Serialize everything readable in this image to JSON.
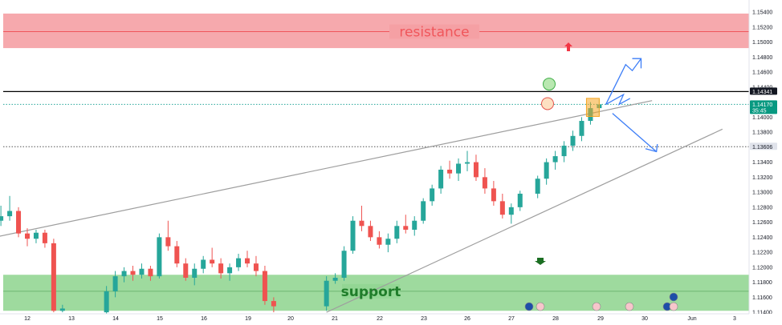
{
  "chart_data": {
    "type": "candlestick",
    "ylim": [
      1.1138,
      1.1555
    ],
    "y_ticks": [
      "1.15400",
      "1.15200",
      "1.15000",
      "1.14800",
      "1.14600",
      "1.14400",
      "1.14000",
      "1.13800",
      "1.13400",
      "1.13200",
      "1.13000",
      "1.12800",
      "1.12600",
      "1.12400",
      "1.12200",
      "1.12000",
      "1.11800",
      "1.11600",
      "1.11400"
    ],
    "x_ticks": [
      "12",
      "13",
      "14",
      "15",
      "16",
      "19",
      "20",
      "21",
      "22",
      "23",
      "26",
      "27",
      "28",
      "29",
      "30",
      "Jun",
      "3"
    ],
    "resistance_zone": {
      "label": "resistance",
      "low": 1.1492,
      "high": 1.1538,
      "mid": 1.1514,
      "color": "#f5a0a4",
      "text_color": "#f0565b"
    },
    "support_zone": {
      "label": "support",
      "low": 1.1142,
      "high": 1.119,
      "mid": 1.1168,
      "color": "#93d694",
      "text_color": "#1f7d2a"
    },
    "levels": [
      {
        "value": 1.14341,
        "label": "1.14341",
        "style": "solid",
        "color": "#000000",
        "tag_bg": "#131722",
        "tag_fg": "#ffffff"
      },
      {
        "value": 1.1417,
        "label": "1.14170",
        "sub": "35:45",
        "style": "dotted",
        "color": "#26a69a",
        "tag_bg": "#089981",
        "tag_fg": "#ffffff"
      },
      {
        "value": 1.13606,
        "label": "1.13606",
        "style": "dotted",
        "color": "#555555",
        "tag_bg": "#e0e3eb",
        "tag_fg": "#131722"
      }
    ],
    "channel": {
      "upper": [
        [
          10.6,
          1.1232
        ],
        [
          26.2,
          1.1422
        ]
      ],
      "lower": [
        [
          18.8,
          1.114
        ],
        [
          27.8,
          1.1384
        ]
      ]
    },
    "candles": [
      [
        11.0,
        1.1252,
        1.126,
        1.124,
        1.1248
      ],
      [
        11.2,
        1.1248,
        1.1268,
        1.1245,
        1.1262
      ],
      [
        11.4,
        1.1262,
        1.1282,
        1.1255,
        1.1268
      ],
      [
        11.6,
        1.1268,
        1.1295,
        1.1262,
        1.1275
      ],
      [
        11.8,
        1.1275,
        1.128,
        1.124,
        1.1245
      ],
      [
        12.0,
        1.1245,
        1.1252,
        1.1228,
        1.1238
      ],
      [
        12.2,
        1.1238,
        1.125,
        1.1232,
        1.1246
      ],
      [
        12.4,
        1.1246,
        1.125,
        1.1226,
        1.1232
      ],
      [
        12.6,
        1.1232,
        1.1238,
        1.114,
        1.1142
      ],
      [
        12.8,
        1.1142,
        1.115,
        1.114,
        1.1145
      ],
      [
        13.8,
        1.114,
        1.1175,
        1.1138,
        1.1168
      ],
      [
        14.0,
        1.1168,
        1.1195,
        1.116,
        1.1188
      ],
      [
        14.2,
        1.1188,
        1.12,
        1.118,
        1.1195
      ],
      [
        14.4,
        1.1195,
        1.1202,
        1.1182,
        1.119
      ],
      [
        14.6,
        1.119,
        1.1205,
        1.1185,
        1.1198
      ],
      [
        14.8,
        1.1198,
        1.1202,
        1.1182,
        1.1188
      ],
      [
        15.0,
        1.1188,
        1.1245,
        1.1185,
        1.124
      ],
      [
        15.2,
        1.124,
        1.1262,
        1.1222,
        1.1228
      ],
      [
        15.4,
        1.1228,
        1.1235,
        1.12,
        1.1205
      ],
      [
        15.6,
        1.1205,
        1.1212,
        1.1182,
        1.1186
      ],
      [
        15.8,
        1.1186,
        1.1205,
        1.1176,
        1.1198
      ],
      [
        16.0,
        1.1198,
        1.1215,
        1.1192,
        1.121
      ],
      [
        16.2,
        1.121,
        1.1226,
        1.12,
        1.1205
      ],
      [
        16.4,
        1.1205,
        1.1212,
        1.1185,
        1.1192
      ],
      [
        16.6,
        1.1192,
        1.1205,
        1.1182,
        1.12
      ],
      [
        16.8,
        1.12,
        1.1218,
        1.1195,
        1.1212
      ],
      [
        17.0,
        1.1212,
        1.1222,
        1.12,
        1.1205
      ],
      [
        17.2,
        1.1205,
        1.1215,
        1.1188,
        1.1195
      ],
      [
        17.4,
        1.1195,
        1.1202,
        1.115,
        1.1155
      ],
      [
        17.6,
        1.1155,
        1.116,
        1.114,
        1.1148
      ],
      [
        18.8,
        1.1148,
        1.1188,
        1.1142,
        1.1182
      ],
      [
        19.0,
        1.1182,
        1.1192,
        1.1178,
        1.1186
      ],
      [
        19.2,
        1.1186,
        1.1228,
        1.1182,
        1.1222
      ],
      [
        19.4,
        1.1222,
        1.1268,
        1.1218,
        1.1262
      ],
      [
        19.6,
        1.1262,
        1.1282,
        1.1248,
        1.1255
      ],
      [
        19.8,
        1.1255,
        1.1262,
        1.1235,
        1.124
      ],
      [
        20.0,
        1.124,
        1.1248,
        1.1225,
        1.123
      ],
      [
        20.2,
        1.123,
        1.1245,
        1.122,
        1.1238
      ],
      [
        20.4,
        1.1238,
        1.1262,
        1.1232,
        1.1255
      ],
      [
        20.6,
        1.1255,
        1.127,
        1.1245,
        1.125
      ],
      [
        20.8,
        1.125,
        1.1268,
        1.1242,
        1.1262
      ],
      [
        21.0,
        1.1262,
        1.1292,
        1.1258,
        1.1288
      ],
      [
        21.2,
        1.1288,
        1.131,
        1.1282,
        1.1305
      ],
      [
        21.4,
        1.1305,
        1.1335,
        1.1298,
        1.133
      ],
      [
        21.6,
        1.133,
        1.1342,
        1.1318,
        1.1325
      ],
      [
        21.8,
        1.1325,
        1.1345,
        1.1315,
        1.1338
      ],
      [
        22.0,
        1.1338,
        1.1355,
        1.1328,
        1.134
      ],
      [
        22.2,
        1.134,
        1.135,
        1.1315,
        1.132
      ],
      [
        22.4,
        1.132,
        1.1332,
        1.1298,
        1.1305
      ],
      [
        22.6,
        1.1305,
        1.1315,
        1.1282,
        1.1288
      ],
      [
        22.8,
        1.1288,
        1.1298,
        1.1265,
        1.127
      ],
      [
        23.0,
        1.127,
        1.1285,
        1.1258,
        1.128
      ],
      [
        23.2,
        1.128,
        1.1302,
        1.1275,
        1.1298
      ],
      [
        23.6,
        1.1298,
        1.1322,
        1.1292,
        1.1318
      ],
      [
        23.8,
        1.1318,
        1.1345,
        1.131,
        1.134
      ],
      [
        24.0,
        1.134,
        1.1355,
        1.133,
        1.1348
      ],
      [
        24.2,
        1.1348,
        1.1368,
        1.134,
        1.1362
      ],
      [
        24.4,
        1.1362,
        1.1382,
        1.1355,
        1.1375
      ],
      [
        24.6,
        1.1375,
        1.14,
        1.1368,
        1.1395
      ],
      [
        24.8,
        1.1395,
        1.142,
        1.139,
        1.1412
      ],
      [
        25.0,
        1.1412,
        1.1424,
        1.1402,
        1.1417
      ]
    ]
  },
  "colors": {
    "bull": "#26a69a",
    "bear": "#ef5350",
    "channel": "#9e9e9e",
    "projection": "#3d7ef7",
    "highlight": "#f5a623"
  },
  "markers": {
    "targets": [
      "green-target-icon",
      "red-target-icon"
    ],
    "arrows": [
      "up-arrow-icon",
      "down-arrow-icon"
    ],
    "events": [
      "event-flag-icon"
    ]
  }
}
